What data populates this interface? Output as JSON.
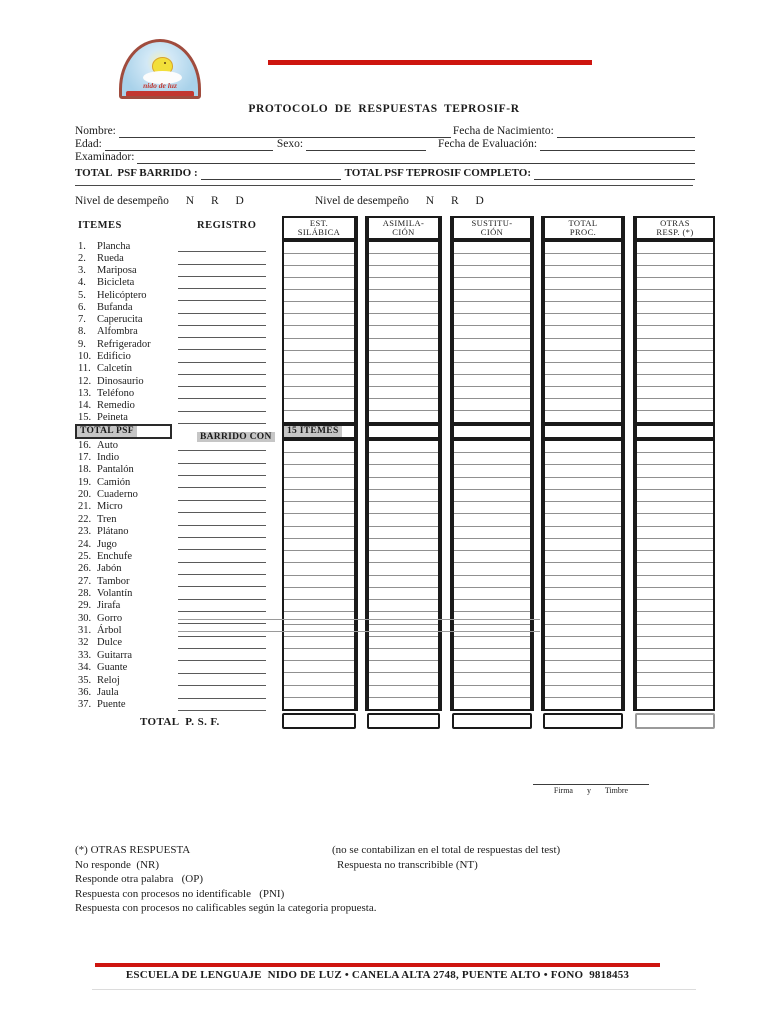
{
  "title": "PROTOCOLO DE RESPUESTAS TEPROSIF-R",
  "logo": {
    "name": "nido de luz"
  },
  "fields": {
    "nombre": "Nombre:",
    "fecha_nacimiento": "Fecha de Nacimiento:",
    "edad": "Edad:",
    "sexo": "Sexo:",
    "fecha_evaluacion": "Fecha de Evaluación:",
    "examinador": "Examinador:"
  },
  "totals": {
    "barrido": "TOTAL  PSF BARRIDO :",
    "completo": "TOTAL PSF TEPROSIF COMPLETO:"
  },
  "nivel": {
    "label": "Nivel de desempeño",
    "levels": [
      "N",
      "R",
      "D"
    ]
  },
  "table": {
    "itemes_header": "ITEMES",
    "registro_header": "REGISTRO",
    "columns": [
      {
        "top": "EST.",
        "bottom": "SILÁBICA"
      },
      {
        "top": "ASIMILA-",
        "bottom": "CIÓN"
      },
      {
        "top": "SUSTITU-",
        "bottom": "CIÓN"
      },
      {
        "top": "TOTAL",
        "bottom": "PROC."
      },
      {
        "top": "OTRAS",
        "bottom": "RESP. (*)"
      }
    ],
    "items_part1": [
      {
        "n": "1.",
        "t": "Plancha"
      },
      {
        "n": "2.",
        "t": "Rueda"
      },
      {
        "n": "3.",
        "t": "Mariposa"
      },
      {
        "n": "4.",
        "t": "Bicicleta"
      },
      {
        "n": "5.",
        "t": "Helicóptero"
      },
      {
        "n": "6.",
        "t": "Bufanda"
      },
      {
        "n": "7.",
        "t": "Caperucita"
      },
      {
        "n": "8.",
        "t": "Alfombra"
      },
      {
        "n": "9.",
        "t": "Refrigerador"
      },
      {
        "n": "10.",
        "t": "Edificio"
      },
      {
        "n": "11.",
        "t": "Calcetín"
      },
      {
        "n": "12.",
        "t": "Dinosaurio"
      },
      {
        "n": "13.",
        "t": "Teléfono"
      },
      {
        "n": "14.",
        "t": "Remedio"
      },
      {
        "n": "15.",
        "t": "Peineta"
      }
    ],
    "mid_row": {
      "items_cell": "TOTAL PSF",
      "registro_cell": "BARRIDO CON",
      "first_col_cell": "15 ITEMES"
    },
    "items_part2": [
      {
        "n": "16.",
        "t": "Auto"
      },
      {
        "n": "17.",
        "t": "Indio"
      },
      {
        "n": "18.",
        "t": "Pantalón"
      },
      {
        "n": "19.",
        "t": "Camión"
      },
      {
        "n": "20.",
        "t": "Cuaderno"
      },
      {
        "n": "21.",
        "t": "Micro"
      },
      {
        "n": "22.",
        "t": "Tren"
      },
      {
        "n": "23.",
        "t": "Plátano"
      },
      {
        "n": "24.",
        "t": "Jugo"
      },
      {
        "n": "25.",
        "t": "Enchufe"
      },
      {
        "n": "26.",
        "t": "Jabón"
      },
      {
        "n": "27.",
        "t": "Tambor"
      },
      {
        "n": "28.",
        "t": "Volantín"
      },
      {
        "n": "29.",
        "t": "Jirafa"
      },
      {
        "n": "30.",
        "t": "Gorro"
      },
      {
        "n": "31.",
        "t": "Árbol"
      },
      {
        "n": "32",
        "t": "Dulce"
      },
      {
        "n": "33.",
        "t": "Guitarra"
      },
      {
        "n": "34.",
        "t": "Guante"
      },
      {
        "n": "35.",
        "t": "Reloj"
      },
      {
        "n": "36.",
        "t": "Jaula"
      },
      {
        "n": "37.",
        "t": "Puente"
      }
    ],
    "total_row_label": "TOTAL  P. S. F."
  },
  "signature": "Firma  y  Timbre",
  "notes": [
    {
      "left": "(*) OTRAS RESPUESTA",
      "right": "(no se contabilizan en el total de respuestas del test)"
    },
    {
      "left": "No responde  (NR)",
      "right": "Respuesta no transcribible (NT)"
    },
    {
      "left": "Responde otra palabra   (OP)",
      "right": ""
    },
    {
      "left": "Respuesta con procesos no identificable   (PNI)",
      "right": ""
    },
    {
      "left": "Respuesta con procesos no calificables según la categoria propuesta.",
      "right": ""
    }
  ],
  "footer": {
    "text": "ESCUELA DE LENGUAJE  NIDO DE LUZ • CANELA ALTA 2748, PUENTE ALTO • FONO  9818453"
  },
  "colors": {
    "red": "#ce150f",
    "highlight": "#c6c6c6",
    "border": "#1a1a1a"
  }
}
